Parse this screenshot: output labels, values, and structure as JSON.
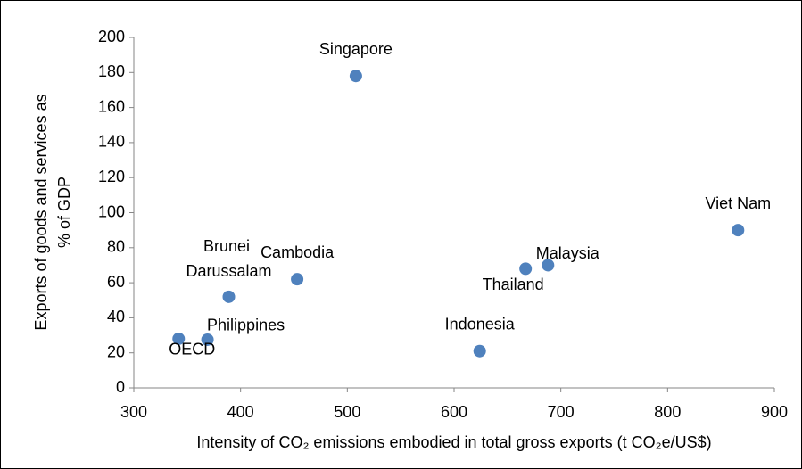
{
  "chart_data": {
    "type": "scatter",
    "x_label": "Intensity of CO₂ emissions embodied in total gross exports (t CO₂e/US$)",
    "y_label": [
      "Exports of goods and services as",
      "% of GDP"
    ],
    "series": [
      {
        "color": "#4f81bd",
        "labels": [
          "Singapore",
          "Viet Nam",
          "Malaysia",
          "Thailand",
          "Indonesia",
          "Cambodia",
          "Brunei Darussalam",
          "Philippines",
          "OECD"
        ],
        "x": [
          508,
          866,
          688,
          667,
          624,
          453,
          389,
          369,
          342
        ],
        "values": [
          178,
          90,
          70,
          68,
          21,
          62,
          52,
          27.5,
          28
        ]
      }
    ],
    "xlim": [
      300,
      900
    ],
    "xticks": [
      300,
      400,
      500,
      600,
      700,
      800,
      900
    ],
    "ylim": [
      0,
      200
    ],
    "yticks": [
      0,
      20,
      40,
      60,
      80,
      100,
      120,
      140,
      160,
      180,
      200
    ],
    "grid": false
  }
}
